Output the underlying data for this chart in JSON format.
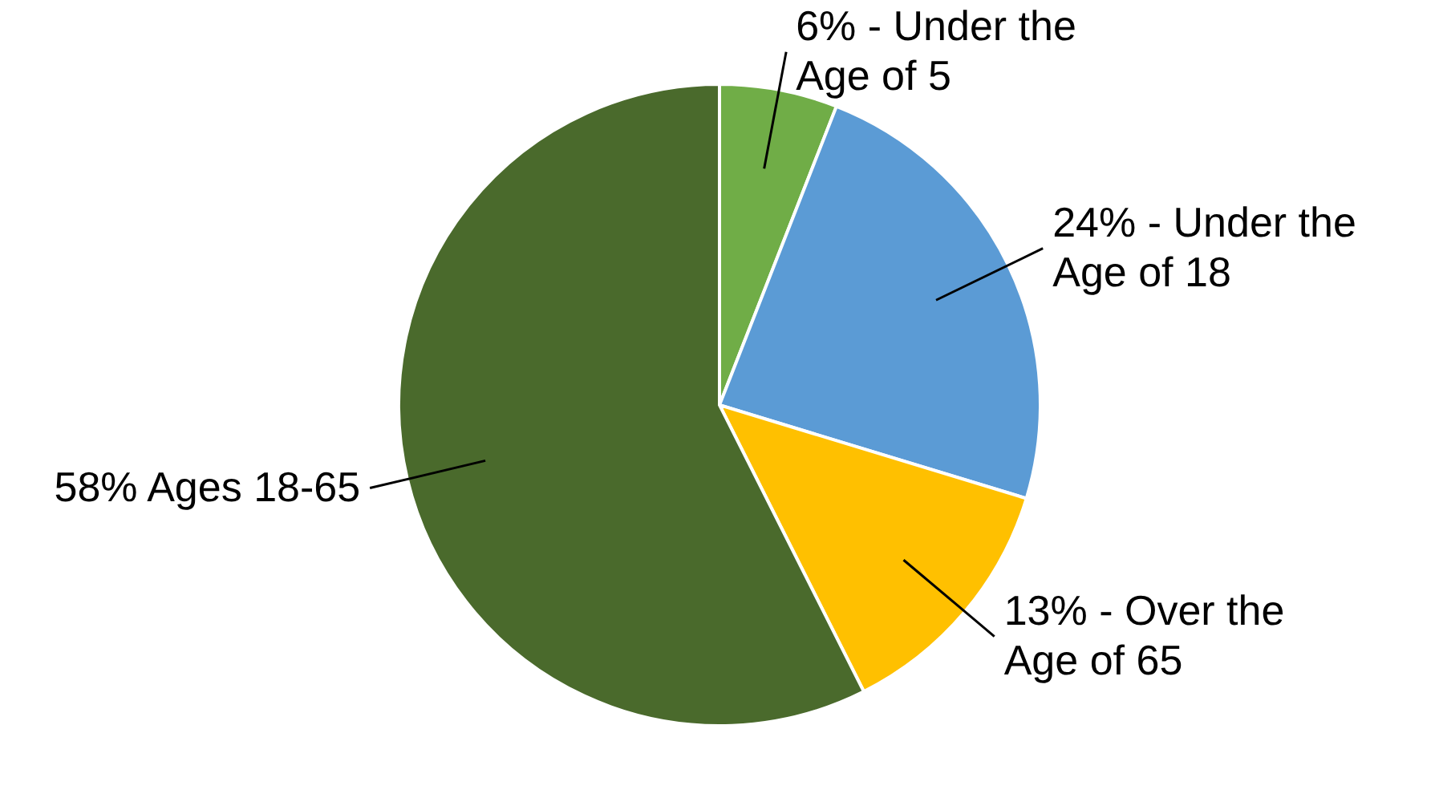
{
  "chart_data": {
    "type": "pie",
    "categories": [
      "Under the Age of 5",
      "Under the Age of 18",
      "Over the Age of 65",
      "Ages 18-65"
    ],
    "values": [
      6,
      24,
      13,
      58
    ],
    "value_labels": [
      "6% -",
      "24% -",
      "13% -",
      "58%"
    ],
    "colors": [
      "#70ad47",
      "#5b9bd5",
      "#ffc000",
      "#4a6a2c"
    ]
  }
}
